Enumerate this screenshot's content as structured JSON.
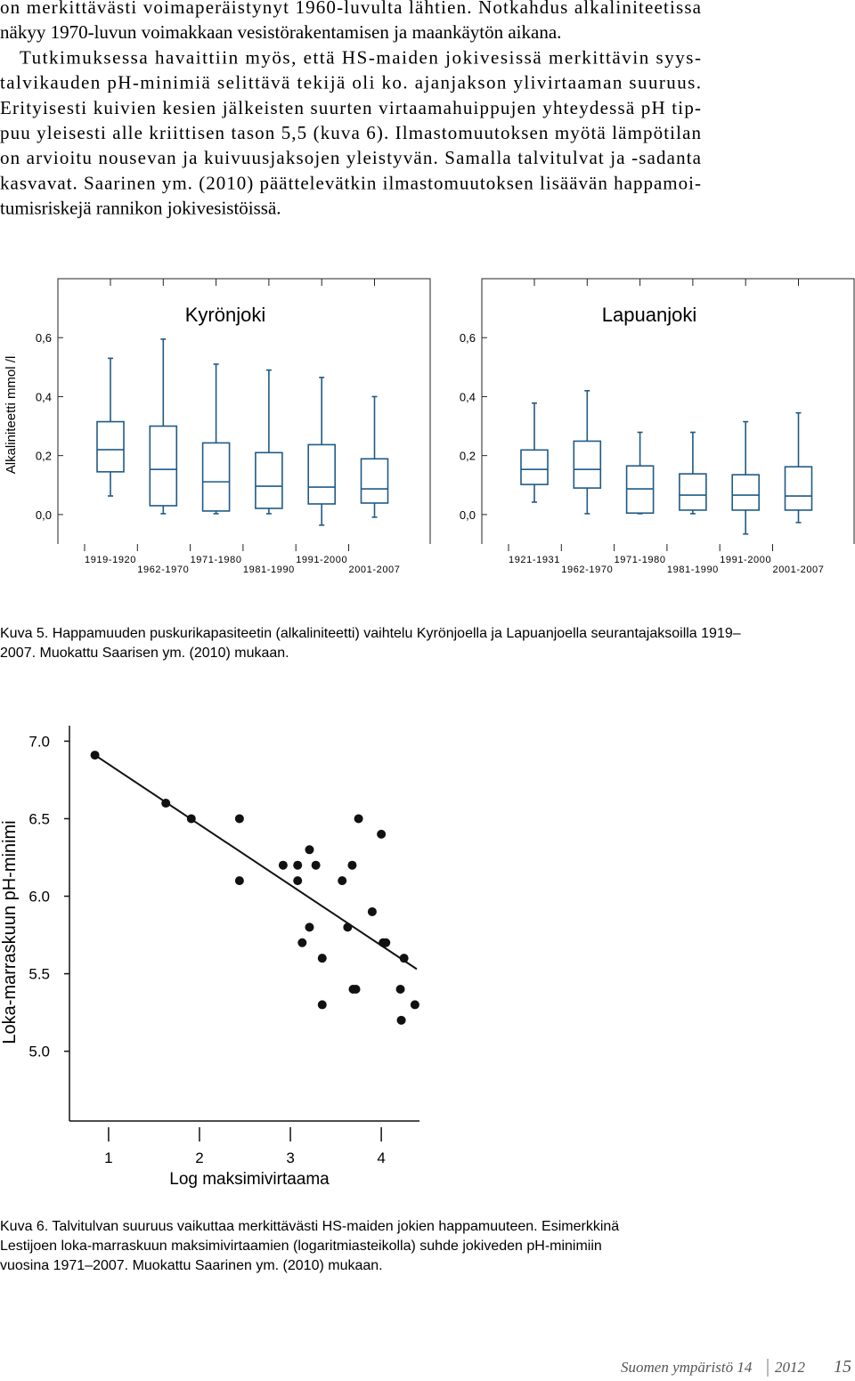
{
  "paragraphs": [
    [
      "on merkittävästi voimaperäistynyt 1960-luvulta lähtien. Notkahdus alkaliniteetissa",
      "näkyy 1970-luvun voimakkaan vesistörakentamisen ja maankäytön aikana."
    ],
    [
      "Tutkimuksessa havaittiin myös, että HS-maiden jokivesissä merkittävin syys-",
      "talvikauden pH-minimiä selittävä tekijä oli ko. ajanjakson ylivirtaaman suuruus.",
      "Erityisesti kuivien kesien jälkeisten suurten virtaamahuippujen yhteydessä pH tip-",
      "puu yleisesti alle kriittisen tason 5,5 (kuva 6). Ilmastomuutoksen myötä lämpötilan",
      "on arvioitu nousevan ja kuivuusjaksojen yleistyvän. Samalla talvitulvat ja -sadanta",
      "kasvavat. Saarinen ym. (2010) päättelevätkin ilmastomuutoksen lisäävän happamoi-",
      "tumisriskejä rannikon jokivesistöissä."
    ]
  ],
  "chart_data": [
    {
      "type": "box",
      "title": "Kyrönjoki",
      "ylabel": "Alkaliniteetti mmol /l",
      "categories": [
        "1919-1920",
        "1962-1970",
        "1971-1980",
        "1981-1990",
        "1991-2000",
        "2001-2007"
      ],
      "boxes": [
        {
          "min": 0.063,
          "q1": 0.145,
          "median": 0.22,
          "q3": 0.315,
          "max": 0.53
        },
        {
          "min": 0.003,
          "q1": 0.03,
          "median": 0.153,
          "q3": 0.3,
          "max": 0.595
        },
        {
          "min": 0.003,
          "q1": 0.012,
          "median": 0.111,
          "q3": 0.243,
          "max": 0.51
        },
        {
          "min": 0.003,
          "q1": 0.021,
          "median": 0.096,
          "q3": 0.21,
          "max": 0.49
        },
        {
          "min": -0.036,
          "q1": 0.036,
          "median": 0.093,
          "q3": 0.237,
          "max": 0.465
        },
        {
          "min": -0.009,
          "q1": 0.039,
          "median": 0.087,
          "q3": 0.189,
          "max": 0.4
        }
      ],
      "color": "#1f5a86",
      "ylim": [
        -0.1,
        0.8
      ],
      "yticks": [
        {
          "value": 0,
          "label": "0,0"
        },
        {
          "value": 0.2,
          "label": "0,2"
        },
        {
          "value": 0.4,
          "label": "0,4"
        },
        {
          "value": 0.6,
          "label": "0,6"
        }
      ]
    },
    {
      "type": "box",
      "title": "Lapuanjoki",
      "categories": [
        "1921-1931",
        "1962-1970",
        "1971-1980",
        "1981-1990",
        "1991-2000",
        "2001-2007"
      ],
      "boxes": [
        {
          "min": 0.042,
          "q1": 0.102,
          "median": 0.153,
          "q3": 0.219,
          "max": 0.378
        },
        {
          "min": 0.003,
          "q1": 0.09,
          "median": 0.153,
          "q3": 0.249,
          "max": 0.42
        },
        {
          "min": 0.003,
          "q1": 0.005,
          "median": 0.087,
          "q3": 0.165,
          "max": 0.279
        },
        {
          "min": 0.003,
          "q1": 0.015,
          "median": 0.066,
          "q3": 0.138,
          "max": 0.279
        },
        {
          "min": -0.066,
          "q1": 0.015,
          "median": 0.066,
          "q3": 0.135,
          "max": 0.315
        },
        {
          "min": -0.027,
          "q1": 0.015,
          "median": 0.063,
          "q3": 0.162,
          "max": 0.345
        }
      ],
      "color": "#1f5a86",
      "ylim": [
        -0.1,
        0.8
      ],
      "yticks": [
        {
          "value": 0,
          "label": "0,0"
        },
        {
          "value": 0.2,
          "label": "0,2"
        },
        {
          "value": 0.4,
          "label": "0,4"
        },
        {
          "value": 0.6,
          "label": "0,6"
        }
      ]
    },
    {
      "type": "scatter",
      "xlabel": "Log maksimivirtaama",
      "ylabel": "Loka-marraskuun pH-minimi",
      "x": [
        0.85,
        1.63,
        1.91,
        2.44,
        2.44,
        2.92,
        3.08,
        3.08,
        3.21,
        3.28,
        3.13,
        3.21,
        3.35,
        3.35,
        3.57,
        3.68,
        3.63,
        3.69,
        3.72,
        3.75,
        3.9,
        4.0,
        4.02,
        4.05,
        4.21,
        4.22,
        4.25,
        4.37
      ],
      "y": [
        6.91,
        6.6,
        6.5,
        6.5,
        6.1,
        6.2,
        6.2,
        6.1,
        6.3,
        6.2,
        5.7,
        5.8,
        5.6,
        5.3,
        6.1,
        6.2,
        5.8,
        5.4,
        5.4,
        6.5,
        5.9,
        6.4,
        5.7,
        5.7,
        5.4,
        5.2,
        5.6,
        5.3
      ],
      "trendline": {
        "x": [
          0.85,
          4.39
        ],
        "y": [
          6.91,
          5.53
        ]
      },
      "color": "#111111",
      "xlim": [
        0.57,
        4.42
      ],
      "ylim": [
        4.55,
        7.1
      ],
      "xticks": [
        1,
        2,
        3,
        4
      ],
      "yticks": [
        {
          "value": 5,
          "label": "5.0"
        },
        {
          "value": 5.5,
          "label": "5.5"
        },
        {
          "value": 6,
          "label": "6.0"
        },
        {
          "value": 6.5,
          "label": "6.5"
        },
        {
          "value": 7,
          "label": "7.0"
        }
      ]
    }
  ],
  "captions": [
    [
      "Kuva 5. Happamuuden puskurikapasiteetin (alkaliniteetti) vaihtelu Kyrönjoella ja Lapuanjoella seurantajaksoilla 1919–",
      "2007. Muokattu Saarisen ym. (2010) mukaan."
    ],
    [
      "Kuva 6. Talvitulvan suuruus vaikuttaa merkittävästi HS-maiden jokien happamuuteen. Esimerkkinä",
      "Lestijoen loka-marraskuun maksimivirtaamien (logaritmiasteikolla) suhde jokiveden pH-minimiin",
      "vuosina 1971–2007. Muokattu Saarinen ym. (2010) mukaan."
    ]
  ],
  "footer": {
    "publication": "Suomen ympäristö 14",
    "year": "2012",
    "page": "15"
  }
}
